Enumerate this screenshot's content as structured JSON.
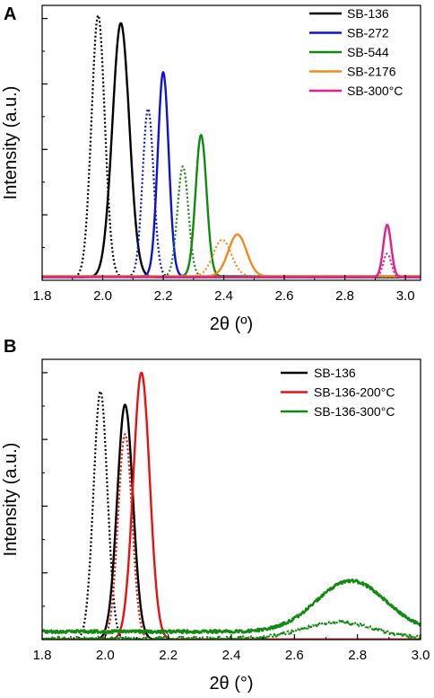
{
  "chart_data": [
    {
      "type": "line",
      "panel_label": "A",
      "xlabel": "2θ (º)",
      "ylabel": "Intensity (a.u.)",
      "xlim": [
        1.8,
        3.05
      ],
      "ylim": [
        0,
        1.05
      ],
      "x_ticks": [
        "1.8",
        "2.0",
        "2.2",
        "2.4",
        "2.6",
        "2.8",
        "3.0"
      ],
      "x_tick_values": [
        1.8,
        2.0,
        2.2,
        2.4,
        2.6,
        2.8,
        3.0
      ],
      "grid": false,
      "legend_position": "top-right",
      "series": [
        {
          "name": "SB-136",
          "color": "#000000",
          "style": "solid",
          "peak_x": 2.06,
          "peak_y": 0.97,
          "width": 0.028,
          "baseline": 0.012
        },
        {
          "name": "",
          "color": "#000000",
          "style": "dotted",
          "peak_x": 1.985,
          "peak_y": 1.0,
          "width": 0.022,
          "baseline": 0.012
        },
        {
          "name": "SB-272",
          "color": "#1010dd",
          "style": "solid",
          "peak_x": 2.2,
          "peak_y": 0.78,
          "width": 0.018,
          "baseline": 0.015
        },
        {
          "name": "",
          "color": "#1010dd",
          "style": "dotted",
          "peak_x": 2.15,
          "peak_y": 0.64,
          "width": 0.018,
          "baseline": 0.015
        },
        {
          "name": "SB-544",
          "color": "#108a10",
          "style": "solid",
          "peak_x": 2.325,
          "peak_y": 0.54,
          "width": 0.018,
          "baseline": 0.015
        },
        {
          "name": "",
          "color": "#108a10",
          "style": "dotted",
          "peak_x": 2.265,
          "peak_y": 0.42,
          "width": 0.018,
          "baseline": 0.015
        },
        {
          "name": "SB-2176",
          "color": "#f28a1c",
          "style": "solid",
          "peak_x": 2.445,
          "peak_y": 0.16,
          "width": 0.03,
          "baseline": 0.015
        },
        {
          "name": "",
          "color": "#f28a1c",
          "style": "dotted",
          "peak_x": 2.395,
          "peak_y": 0.14,
          "width": 0.03,
          "baseline": 0.015
        },
        {
          "name": "SB-300°C",
          "color": "#e0208c",
          "style": "solid",
          "peak_x": 2.94,
          "peak_y": 0.2,
          "width": 0.013,
          "baseline": 0.012
        },
        {
          "name": "",
          "color": "#e0208c",
          "style": "dotted",
          "peak_x": 2.94,
          "peak_y": 0.09,
          "width": 0.013,
          "baseline": 0.012
        }
      ]
    },
    {
      "type": "line",
      "panel_label": "B",
      "xlabel": "2θ (°)",
      "ylabel": "Intensity (a.u.)",
      "xlim": [
        1.8,
        3.0
      ],
      "ylim": [
        0,
        1.05
      ],
      "x_ticks": [
        "1.8",
        "2.0",
        "2.2",
        "2.4",
        "2.6",
        "2.8",
        "3.0"
      ],
      "x_tick_values": [
        1.8,
        2.0,
        2.2,
        2.4,
        2.6,
        2.8,
        3.0
      ],
      "grid": false,
      "legend_position": "top-right",
      "series": [
        {
          "name": "SB-136",
          "color": "#000000",
          "style": "solid",
          "peak_x": 2.063,
          "peak_y": 0.88,
          "width": 0.025,
          "baseline": 0.0
        },
        {
          "name": "",
          "color": "#000000",
          "style": "dotted",
          "peak_x": 1.985,
          "peak_y": 0.93,
          "width": 0.022,
          "baseline": 0.0
        },
        {
          "name": "SB-136-200°C",
          "color": "#e81010",
          "style": "solid",
          "peak_x": 2.115,
          "peak_y": 1.0,
          "width": 0.026,
          "baseline": 0.0
        },
        {
          "name": "",
          "color": "#e81010",
          "style": "dotted",
          "peak_x": 2.063,
          "peak_y": 0.77,
          "width": 0.022,
          "baseline": 0.0
        },
        {
          "name": "SB-136-300°C",
          "color": "#108a10",
          "style": "solid",
          "peak_x": 2.78,
          "peak_y": 0.19,
          "width": 0.11,
          "baseline": 0.03
        },
        {
          "name": "",
          "color": "#108a10",
          "style": "dotted",
          "peak_x": 2.74,
          "peak_y": 0.06,
          "width": 0.11,
          "baseline": 0.005
        }
      ]
    }
  ]
}
